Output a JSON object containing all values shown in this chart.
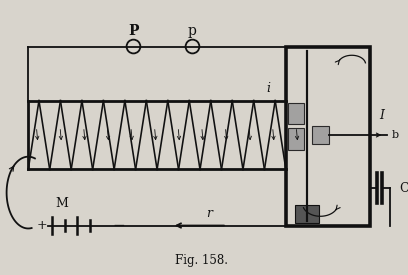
{
  "fig_label": "Fig. 158.",
  "bg_color": "#d8d4cc",
  "line_color": "#111111",
  "gray_color": "#999999",
  "dark_gray": "#555555",
  "solenoid_turns": 12,
  "P1_label": "P",
  "P2_label": "p",
  "i_label": "i",
  "I_label": "I",
  "b_label": "b",
  "C_label": "C",
  "M_label": "M",
  "r_label": "r",
  "plus_label": "+",
  "minus_label": "−"
}
